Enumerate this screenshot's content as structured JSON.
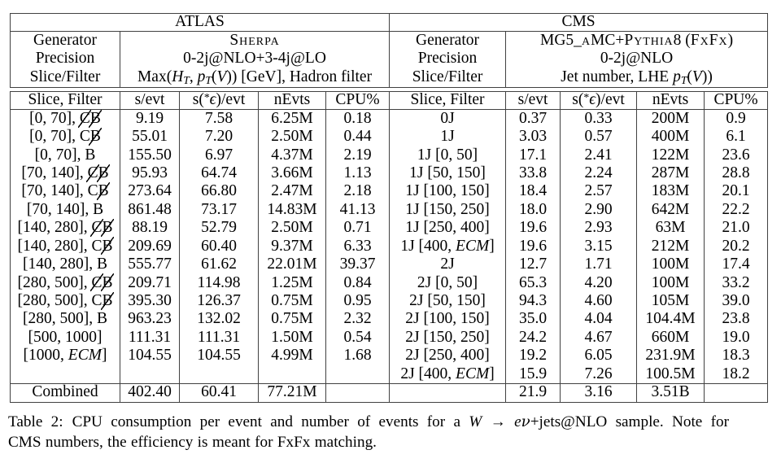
{
  "table": {
    "atlas": {
      "title": "ATLAS",
      "info_labels": [
        "Generator",
        "Precision",
        "Slice/Filter"
      ],
      "info_values": [
        "{sc:Sherpa}",
        "0-2j@NLO+3-4j@LO",
        "Max({i:H}{sub:T}, {i:p}{sub:T}({i:V})) [GeV], Hadron filter"
      ],
      "columns": [
        "Slice, Filter",
        "s/evt",
        "s({sup:*}{i:ϵ})/evt",
        "nEvts",
        "CPU%"
      ],
      "rows": [
        [
          "[0, 70], {x:C}{x:B}",
          "9.19",
          "7.58",
          "6.25M",
          "0.18"
        ],
        [
          "[0, 70], C{x:B}",
          "55.01",
          "7.20",
          "2.50M",
          "0.44"
        ],
        [
          "[0, 70], B",
          "155.50",
          "6.97",
          "4.37M",
          "2.19"
        ],
        [
          "[70, 140], {x:C}{x:B}",
          "95.93",
          "64.74",
          "3.66M",
          "1.13"
        ],
        [
          "[70, 140], C{x:B}",
          "273.64",
          "66.80",
          "2.47M",
          "2.18"
        ],
        [
          "[70, 140], B",
          "861.48",
          "73.17",
          "14.83M",
          "41.13"
        ],
        [
          "[140, 280], {x:C}{x:B}",
          "88.19",
          "52.79",
          "2.50M",
          "0.71"
        ],
        [
          "[140, 280], C{x:B}",
          "209.69",
          "60.40",
          "9.37M",
          "6.33"
        ],
        [
          "[140, 280], B",
          "555.77",
          "61.62",
          "22.01M",
          "39.37"
        ],
        [
          "[280, 500], {x:C}{x:B}",
          "209.71",
          "114.98",
          "1.25M",
          "0.84"
        ],
        [
          "[280, 500], C{x:B}",
          "395.30",
          "126.37",
          "0.75M",
          "0.95"
        ],
        [
          "[280, 500], B",
          "963.23",
          "132.02",
          "0.75M",
          "2.32"
        ],
        [
          "[500, 1000]",
          "111.31",
          "111.31",
          "1.50M",
          "0.54"
        ],
        [
          "[1000, {i:ECM}]",
          "104.55",
          "104.55",
          "4.99M",
          "1.68"
        ]
      ],
      "combined": [
        "Combined",
        "402.40",
        "60.41",
        "77.21M",
        ""
      ]
    },
    "cms": {
      "title": "CMS",
      "info_labels": [
        "Generator",
        "Precision",
        "Slice/Filter"
      ],
      "info_values": [
        "MG5_{sc:a}MC+{sc:Pythia}8 ({sc:FxFx})",
        "0-2j@NLO",
        "Jet number, LHE {i:p}{sub:T}({i:V}))"
      ],
      "columns": [
        "Slice, Filter",
        "s/evt",
        "s({sup:*}{i:ϵ})/evt",
        "nEvts",
        "CPU%"
      ],
      "rows": [
        [
          "0J",
          "0.37",
          "0.33",
          "200M",
          "0.9"
        ],
        [
          "1J",
          "3.03",
          "0.57",
          "400M",
          "6.1"
        ],
        [
          "1J [0, 50]",
          "17.1",
          "2.41",
          "122M",
          "23.6"
        ],
        [
          "1J [50, 150]",
          "33.8",
          "2.24",
          "287M",
          "28.8"
        ],
        [
          "1J [100, 150]",
          "18.4",
          "2.57",
          "183M",
          "20.1"
        ],
        [
          "1J [150, 250]",
          "18.0",
          "2.90",
          "642M",
          "22.2"
        ],
        [
          "1J [250, 400]",
          "19.6",
          "2.93",
          "63M",
          "21.0"
        ],
        [
          "1J [400, {i:ECM}]",
          "19.6",
          "3.15",
          "212M",
          "20.2"
        ],
        [
          "2J",
          "12.7",
          "1.71",
          "100M",
          "17.4"
        ],
        [
          "2J [0, 50]",
          "65.3",
          "4.20",
          "100M",
          "33.2"
        ],
        [
          "2J [50, 150]",
          "94.3",
          "4.60",
          "105M",
          "39.0"
        ],
        [
          "2J [100, 150]",
          "35.0",
          "4.04",
          "104.4M",
          "23.8"
        ],
        [
          "2J [150, 250]",
          "24.2",
          "4.67",
          "660M",
          "19.0"
        ],
        [
          "2J [250, 400]",
          "19.2",
          "6.05",
          "231.9M",
          "18.3"
        ],
        [
          "2J [400, {i:ECM}]",
          "15.9",
          "7.26",
          "100.5M",
          "18.2"
        ]
      ],
      "combined": [
        "",
        "21.9",
        "3.16",
        "3.51B",
        ""
      ]
    }
  },
  "caption": {
    "label": "Table 2:",
    "line1": "CPU consumption per event and number of events for a {i:W} → {i:e}{g:ν}+jets@NLO sample. Note for",
    "line2": "CMS numbers, the efficiency is meant for FxFx matching."
  }
}
